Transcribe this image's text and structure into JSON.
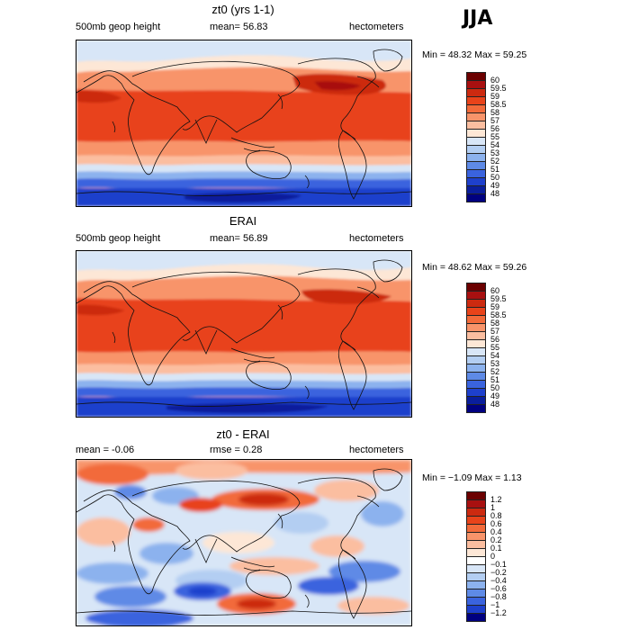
{
  "season": "JJA",
  "panels": [
    {
      "title": "zt0 (yrs 1-1)",
      "left_label": "500mb geop height",
      "mean": "mean=  56.83",
      "units": "hectometers",
      "minmax": "Min =  48.32 Max =  59.25",
      "colorbar": {
        "labels": [
          "60",
          "59.5",
          "59",
          "58.5",
          "58",
          "57",
          "56",
          "55",
          "54",
          "53",
          "52",
          "51",
          "50",
          "49",
          "48"
        ],
        "colors": [
          "#6b0000",
          "#a81010",
          "#cc2a10",
          "#e8431a",
          "#f26a3a",
          "#f8946a",
          "#fbbea0",
          "#fde7d6",
          "#d8e6f7",
          "#b3cef2",
          "#8cb2ee",
          "#5e8ae6",
          "#3a63de",
          "#1e40cc",
          "#0a1e9c",
          "#000080"
        ]
      }
    },
    {
      "title": "ERAI",
      "left_label": "500mb geop height",
      "mean": "mean=  56.89",
      "units": "hectometers",
      "minmax": "Min =  48.62 Max =  59.26",
      "colorbar": {
        "labels": [
          "60",
          "59.5",
          "59",
          "58.5",
          "58",
          "57",
          "56",
          "55",
          "54",
          "53",
          "52",
          "51",
          "50",
          "49",
          "48"
        ],
        "colors": [
          "#6b0000",
          "#a81010",
          "#cc2a10",
          "#e8431a",
          "#f26a3a",
          "#f8946a",
          "#fbbea0",
          "#fde7d6",
          "#d8e6f7",
          "#b3cef2",
          "#8cb2ee",
          "#5e8ae6",
          "#3a63de",
          "#1e40cc",
          "#0a1e9c",
          "#000080"
        ]
      }
    },
    {
      "title": "zt0 - ERAI",
      "left_label": "mean =   -0.06",
      "mean": "rmse =    0.28",
      "units": "hectometers",
      "minmax": "Min =  −1.09 Max =    1.13",
      "colorbar": {
        "labels": [
          "1.2",
          "1",
          "0.8",
          "0.6",
          "0.4",
          "0.2",
          "0.1",
          "0",
          "−0.1",
          "−0.2",
          "−0.4",
          "−0.6",
          "−0.8",
          "−1",
          "−1.2"
        ],
        "colors": [
          "#6b0000",
          "#a81010",
          "#cc2a10",
          "#e8431a",
          "#f26a3a",
          "#f8946a",
          "#fbbea0",
          "#fde7d6",
          "#ffffff",
          "#d8e6f7",
          "#b3cef2",
          "#8cb2ee",
          "#5e8ae6",
          "#3a63de",
          "#1e40cc",
          "#000080"
        ]
      }
    }
  ]
}
